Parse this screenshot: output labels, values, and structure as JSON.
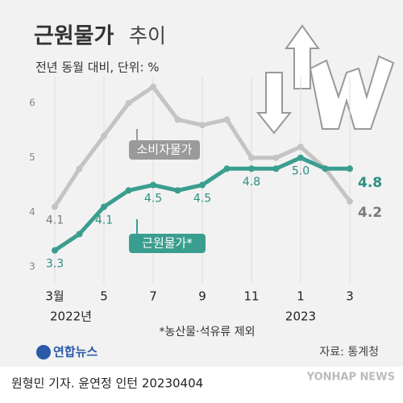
{
  "chart_data": {
    "type": "line",
    "title": "근원물가",
    "title_suffix": "추이",
    "subtitle": "전년 동월 대비, 단위: %",
    "categories": [
      "3월",
      null,
      "5",
      null,
      "7",
      null,
      "9",
      null,
      "11",
      null,
      "1",
      null,
      "3"
    ],
    "year_labels": [
      "2022년",
      null,
      null,
      null,
      null,
      null,
      null,
      null,
      null,
      null,
      "2023",
      null,
      null
    ],
    "series": [
      {
        "name": "소비자물가",
        "color": "#c4c4c4",
        "label_color": "#7a7a7a",
        "values": [
          4.1,
          4.8,
          5.4,
          6.0,
          6.3,
          5.7,
          5.6,
          5.7,
          5.0,
          5.0,
          5.2,
          4.8,
          4.2
        ],
        "value_labels": [
          "4.1",
          null,
          null,
          null,
          null,
          null,
          null,
          null,
          null,
          null,
          null,
          null,
          "4.2"
        ]
      },
      {
        "name": "근원물가*",
        "color": "#3a9e8f",
        "label_color": "#2b8f80",
        "values": [
          3.3,
          3.6,
          4.1,
          4.4,
          4.5,
          4.4,
          4.5,
          4.8,
          4.8,
          4.8,
          5.0,
          4.8,
          4.8
        ],
        "value_labels": [
          "3.3",
          null,
          "4.1",
          null,
          "4.5",
          null,
          "4.5",
          null,
          "4.8",
          null,
          "5.0",
          null,
          "4.8"
        ]
      }
    ],
    "ylim": [
      2.6,
      6.8
    ],
    "yticks": [
      3,
      4,
      5,
      6
    ],
    "grid": true,
    "footnote": "*농산물·석유류 제외",
    "source": "자료: 통계청",
    "logo": "연합뉴스",
    "credit": "원형민 기자. 윤연정 인턴  20230404",
    "watermark": "YONHAP NEWS"
  }
}
